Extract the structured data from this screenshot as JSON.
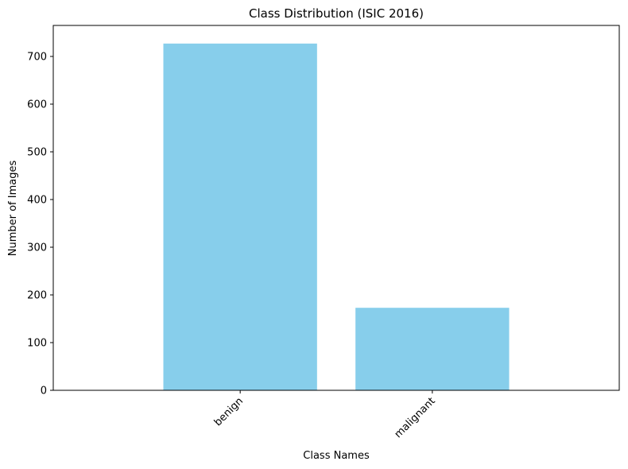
{
  "chart_data": {
    "type": "bar",
    "title": "Class Distribution (ISIC 2016)",
    "x_label": "Class Names",
    "y_label": "Number of Images",
    "categories": [
      "benign",
      "malignant"
    ],
    "values": [
      727,
      173
    ],
    "color": "#87ceeb",
    "ylim": [
      0,
      765
    ],
    "yticks": [
      0,
      100,
      200,
      300,
      400,
      500,
      600,
      700
    ]
  }
}
